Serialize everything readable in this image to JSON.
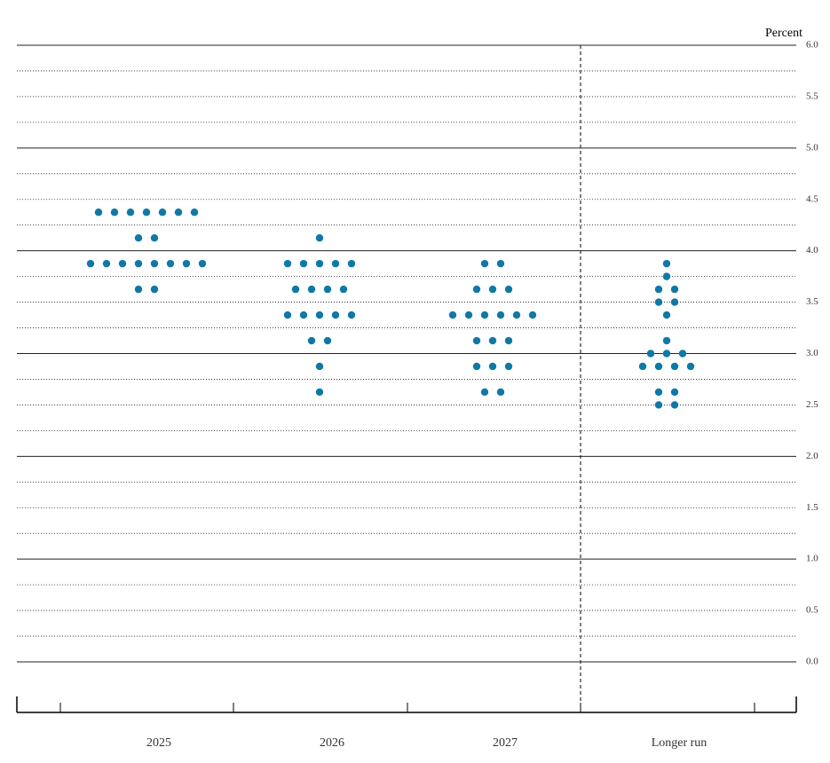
{
  "chart_data": {
    "type": "dot",
    "y_label": "Percent",
    "categories": [
      "2025",
      "2026",
      "2027",
      "Longer run"
    ],
    "values": [
      [
        4.375,
        4.375,
        4.375,
        4.375,
        4.375,
        4.375,
        4.375,
        4.125,
        4.125,
        3.875,
        3.875,
        3.875,
        3.875,
        3.875,
        3.875,
        3.875,
        3.875,
        3.625,
        3.625
      ],
      [
        4.125,
        3.875,
        3.875,
        3.875,
        3.875,
        3.875,
        3.625,
        3.625,
        3.625,
        3.625,
        3.375,
        3.375,
        3.375,
        3.375,
        3.375,
        3.125,
        3.125,
        2.875,
        2.625
      ],
      [
        3.875,
        3.875,
        3.625,
        3.625,
        3.625,
        3.375,
        3.375,
        3.375,
        3.375,
        3.375,
        3.375,
        3.125,
        3.125,
        3.125,
        2.875,
        2.875,
        2.875,
        2.625,
        2.625
      ],
      [
        3.875,
        3.75,
        3.625,
        3.625,
        3.5,
        3.5,
        3.375,
        3.125,
        3.0,
        3.0,
        3.0,
        2.875,
        2.875,
        2.875,
        2.875,
        2.625,
        2.625,
        2.5,
        2.5
      ]
    ],
    "color": "#0f78a6",
    "ylim": [
      0,
      6
    ],
    "yticks": [
      {
        "value": 0,
        "label": "0.0"
      },
      {
        "value": 0.5,
        "label": "0.5"
      },
      {
        "value": 1,
        "label": "1.0"
      },
      {
        "value": 1.5,
        "label": "1.5"
      },
      {
        "value": 2,
        "label": "2.0"
      },
      {
        "value": 2.5,
        "label": "2.5"
      },
      {
        "value": 3,
        "label": "3.0"
      },
      {
        "value": 3.5,
        "label": "3.5"
      },
      {
        "value": 4,
        "label": "4.0"
      },
      {
        "value": 4.5,
        "label": "4.5"
      },
      {
        "value": 5,
        "label": "5.0"
      },
      {
        "value": 5.5,
        "label": "5.5"
      },
      {
        "value": 6,
        "label": "6.0"
      }
    ],
    "minor_yticks": [
      0.25,
      0.75,
      1.25,
      1.75,
      2.25,
      2.75,
      3.25,
      3.75,
      4.25,
      4.75,
      5.25,
      5.75
    ],
    "grid": true
  }
}
